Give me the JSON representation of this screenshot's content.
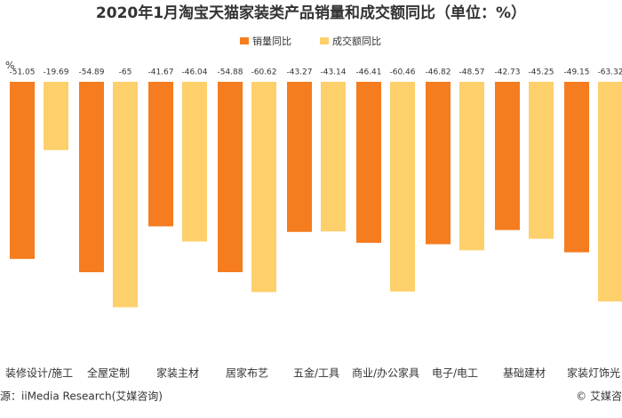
{
  "chart_data": {
    "type": "bar",
    "title": "2020年1月淘宝天猫家装类产品销量和成交额同比（单位：%）",
    "y_unit": "%",
    "categories": [
      "装修设计/施工",
      "全屋定制",
      "家装主材",
      "居家布艺",
      "五金/工具",
      "商业/办公家具",
      "电子/电工",
      "基础建材",
      "家装灯饰光"
    ],
    "series": [
      {
        "name": "销量同比",
        "color": "#f57c1f",
        "values": [
          -51.05,
          -54.89,
          -41.67,
          -54.88,
          -43.27,
          -46.41,
          -46.82,
          -42.73,
          -49.15
        ]
      },
      {
        "name": "成交额同比",
        "color": "#fdd06c",
        "values": [
          -19.69,
          -65,
          -46.04,
          -60.62,
          -43.14,
          -60.46,
          -48.57,
          -45.25,
          -63.32
        ]
      }
    ],
    "ylim": [
      -70,
      0
    ],
    "source": "源：iiMedia Research(艾媒咨询)",
    "copyright": "© 艾媒咨"
  }
}
